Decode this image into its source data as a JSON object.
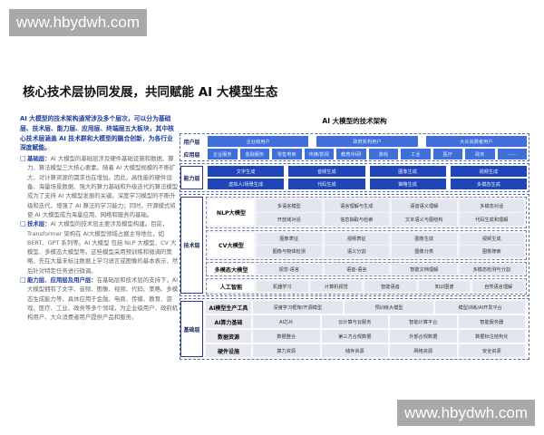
{
  "watermark": "www.hbydwh.com",
  "title": "核心技术层协同发展，共同赋能 AI 大模型生态",
  "left": {
    "intro": "AI 大模型的技术架构通常涉及多个层次，可以分为基础层、技术层、能力层、应用层、终端层五大板块，其中核心技术层涵盖 AI 技术群和大模型的融合创新，为各行业深度赋能。",
    "bullets": [
      {
        "key": "基础层：",
        "text": "AI 大模型的基础层涉及硬件基础设施和数据、算力、算法模型三大核心要素。随着 AI 大模型规模的不断扩大，对计算资源的需求也在增加。因此，高性能的硬件设备、海量场景数据、强大的算力基础和升级迭代的算法模型成为了支持 AI 大模型发展的关键。深度学习模型的不断升级和迭代，增强了 AI 算法的学习能力；同时，开源模式将使 AI 大模型成为海量应用、网络和服务的基础。"
      },
      {
        "key": "技术层：",
        "text": "AI 大模型的技术层主要涉及模型构建。目前，Transformer 架构在 AI大模型领域占据主导地位，如 BERT、GPT 系列等。AI 大模型 包括 NLP 大模型、CV 大模型、多模态大模型等。这些模型采用预训练和微调的策略，先在大量未标注数据上学习语言或图像的基本表示，然后针对特定任务进行微调。"
      },
      {
        "key": "能力层、应用层及用户层：",
        "text": "在基础层和技术层的支持下，AI 大模型拥有了文字、音频、图像、视频、代码、策略、多模态生成能力等，具体应用于金融、电商、传媒、教育、游戏、医疗、工业、政务等多个领域，为企业级用户、政府机构用户、大众消费者用户提供产品和服务。"
      }
    ]
  },
  "diagram": {
    "title": "AI 大模型的技术架构",
    "user_layer": {
      "label": "用户层",
      "items": [
        "企业级用户",
        "政府机构用户",
        "大众消费者用户"
      ]
    },
    "app_layer": {
      "label": "应用层",
      "items": [
        "企业服务",
        "金融服务",
        "零售电商",
        "传媒/影视",
        "教育/科研",
        "游戏",
        "工业",
        "医疗",
        "政务",
        "……"
      ]
    },
    "capability_layer": {
      "label": "能力层",
      "rows": [
        [
          "文字生成",
          "音频生成",
          "图像生成",
          "视频生成"
        ],
        [
          "虚拟人/场景生成",
          "代码生成",
          "策略生成",
          "多模态生成"
        ]
      ]
    },
    "tech_layer": {
      "label": "技术层",
      "groups": [
        {
          "label": "NLP大模型",
          "rows": [
            [
              "多语言模型",
              "语言理解与生成",
              "语音语义理解",
              "多模态对话"
            ],
            [
              "开放域对话",
              "信息抽取与检索",
              "文本语义与图结构",
              "代码生成和理解"
            ]
          ]
        },
        {
          "label": "CV大模型",
          "rows": [
            [
              "图像表征",
              "视频表征",
              "图像生成",
              "视频生成"
            ],
            [
              "图像与物体检测",
              "语义分割",
              "图像分类",
              "图像搜索"
            ]
          ]
        },
        {
          "label": "多模态大模型",
          "rows": [
            [
              "视觉-语言",
              "语音-语言",
              "智能文档理解",
              "多模态检测与分割"
            ]
          ]
        },
        {
          "label": "人工智能",
          "rows": [
            [
              "机器学习",
              "计算机视觉",
              "智能语音",
              "知识图谱",
              "自然语言理解"
            ]
          ]
        }
      ]
    },
    "base_layer": {
      "label": "基础层",
      "groups": [
        {
          "label": "AI模型生产工具",
          "items": [
            "深度学习框架/开源模型",
            "预训练大模型",
            "模型训练/AI开发平台"
          ]
        },
        {
          "label": "AI算力基础",
          "items": [
            "AI芯片",
            "云计算与云服务",
            "智能计算平台",
            "智能服务器"
          ]
        },
        {
          "label": "数据资源",
          "items": [
            "数据整合",
            "第三方合规数据",
            "外部合规数据",
            "数据标注结构化"
          ]
        },
        {
          "label": "硬件设施",
          "items": [
            "算力资源",
            "储存资源",
            "网络资源",
            "安全资源"
          ]
        }
      ]
    }
  }
}
